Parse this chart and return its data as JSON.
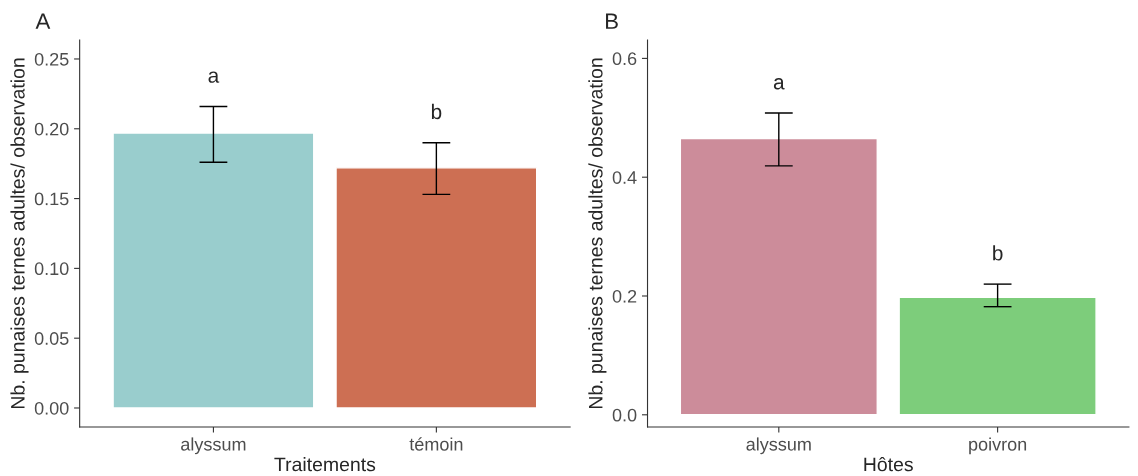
{
  "chart_data": [
    {
      "type": "bar",
      "title": "A",
      "xlabel": "Traitements",
      "ylabel": "Nb. punaises ternes adultes/ observation",
      "categories": [
        "alyssum",
        "témoin"
      ],
      "values": [
        0.197,
        0.172
      ],
      "colors": [
        "#99cdcd",
        "#cd6f53"
      ],
      "errors": [
        [
          0.176,
          0.216
        ],
        [
          0.153,
          0.19
        ]
      ],
      "ylim": [
        -0.0136,
        0.2636
      ],
      "yticks": [
        {
          "value": 0,
          "label": "0.00"
        },
        0.05,
        {
          "value": 0.1,
          "label": "0.10"
        },
        0.15,
        {
          "value": 0.2,
          "label": "0.20"
        },
        0.25
      ],
      "annotations": [
        "a",
        "b"
      ],
      "grid": false
    },
    {
      "type": "bar",
      "title": "B",
      "xlabel": "Hôtes",
      "ylabel": "Nb. punaises ternes adultes/ observation",
      "categories": [
        "alyssum",
        "poivron"
      ],
      "values": [
        0.465,
        0.198
      ],
      "colors": [
        "#cc8c9a",
        "#7dcd7b"
      ],
      "errors": [
        [
          0.419,
          0.508
        ],
        [
          0.182,
          0.22
        ]
      ],
      "ylim": [
        -0.0205,
        0.631
      ],
      "yticks": [
        {
          "value": 0,
          "label": "0.0"
        },
        0.2,
        0.4,
        0.6
      ],
      "annotations": [
        "a",
        "b"
      ],
      "grid": false
    }
  ]
}
